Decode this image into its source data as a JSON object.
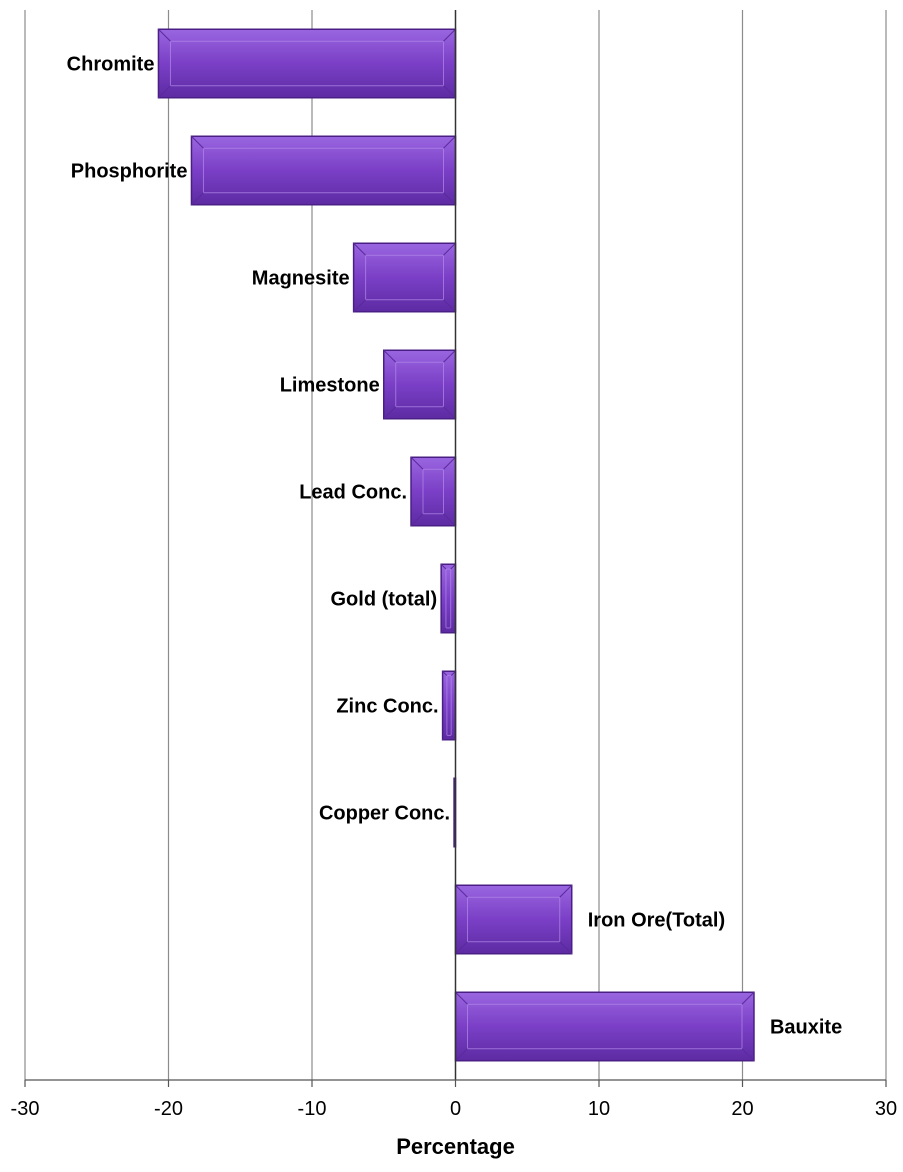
{
  "chart_data": {
    "type": "bar",
    "orientation": "horizontal",
    "categories": [
      "Chromite",
      "Phosphorite",
      "Magnesite",
      "Limestone",
      "Lead Conc.",
      "Gold (total)",
      "Zinc Conc.",
      "Copper Conc.",
      "Iron Ore(Total)",
      "Bauxite"
    ],
    "values": [
      -20.7,
      -18.4,
      -7.1,
      -5.0,
      -3.1,
      -1.0,
      -0.9,
      -0.1,
      8.1,
      20.8
    ],
    "xlabel": "Percentage",
    "xlim": [
      -30,
      30
    ],
    "xticks": [
      "-30",
      "-20",
      "-10",
      "0",
      "10",
      "20",
      "30"
    ],
    "xtick_values": [
      -30,
      -20,
      -10,
      0,
      10,
      20,
      30
    ],
    "grid": "vertical",
    "bar_color": "#7a3fc6",
    "bar_edge_color": "#4a1f85",
    "grid_color": "#8c8c8c"
  }
}
